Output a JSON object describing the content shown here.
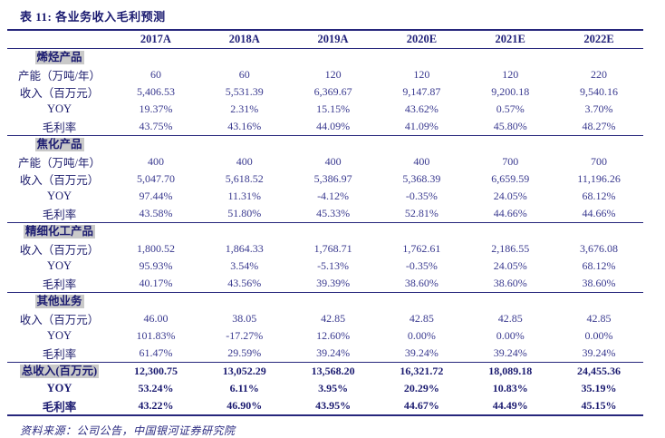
{
  "title": "表 11:  各业务收入毛利预测",
  "columns": [
    "",
    "2017A",
    "2018A",
    "2019A",
    "2020E",
    "2021E",
    "2022E"
  ],
  "sections": [
    {
      "name": "烯烃产品",
      "rows": [
        {
          "label": "产能（万吨/年）",
          "values": [
            "60",
            "60",
            "120",
            "120",
            "120",
            "220"
          ]
        },
        {
          "label": "收入（百万元）",
          "values": [
            "5,406.53",
            "5,531.39",
            "6,369.67",
            "9,147.87",
            "9,200.18",
            "9,540.16"
          ]
        },
        {
          "label": "YOY",
          "values": [
            "19.37%",
            "2.31%",
            "15.15%",
            "43.62%",
            "0.57%",
            "3.70%"
          ]
        },
        {
          "label": "毛利率",
          "values": [
            "43.75%",
            "43.16%",
            "44.09%",
            "41.09%",
            "45.80%",
            "48.27%"
          ]
        }
      ]
    },
    {
      "name": "焦化产品",
      "rows": [
        {
          "label": "产能（万吨/年）",
          "values": [
            "400",
            "400",
            "400",
            "400",
            "700",
            "700"
          ]
        },
        {
          "label": "收入（百万元）",
          "values": [
            "5,047.70",
            "5,618.52",
            "5,386.97",
            "5,368.39",
            "6,659.59",
            "11,196.26"
          ]
        },
        {
          "label": "YOY",
          "values": [
            "97.44%",
            "11.31%",
            "-4.12%",
            "-0.35%",
            "24.05%",
            "68.12%"
          ]
        },
        {
          "label": "毛利率",
          "values": [
            "43.58%",
            "51.80%",
            "45.33%",
            "52.81%",
            "44.66%",
            "44.66%"
          ]
        }
      ]
    },
    {
      "name": "精细化工产品",
      "rows": [
        {
          "label": "收入（百万元）",
          "values": [
            "1,800.52",
            "1,864.33",
            "1,768.71",
            "1,762.61",
            "2,186.55",
            "3,676.08"
          ]
        },
        {
          "label": "YOY",
          "values": [
            "95.93%",
            "3.54%",
            "-5.13%",
            "-0.35%",
            "24.05%",
            "68.12%"
          ]
        },
        {
          "label": "毛利率",
          "values": [
            "40.17%",
            "43.56%",
            "39.39%",
            "38.60%",
            "38.60%",
            "38.60%"
          ]
        }
      ]
    },
    {
      "name": "其他业务",
      "rows": [
        {
          "label": "收入（百万元）",
          "values": [
            "46.00",
            "38.05",
            "42.85",
            "42.85",
            "42.85",
            "42.85"
          ]
        },
        {
          "label": "YOY",
          "values": [
            "101.83%",
            "-17.27%",
            "12.60%",
            "0.00%",
            "0.00%",
            "0.00%"
          ]
        },
        {
          "label": "毛利率",
          "values": [
            "61.47%",
            "29.59%",
            "39.24%",
            "39.24%",
            "39.24%",
            "39.24%"
          ]
        }
      ]
    }
  ],
  "totals": {
    "rows": [
      {
        "label": "总收入(百万元)",
        "highlight": true,
        "values": [
          "12,300.75",
          "13,052.29",
          "13,568.20",
          "16,321.72",
          "18,089.18",
          "24,455.36"
        ]
      },
      {
        "label": "YOY",
        "highlight": false,
        "values": [
          "53.24%",
          "6.11%",
          "3.95%",
          "20.29%",
          "10.83%",
          "35.19%"
        ]
      },
      {
        "label": "毛利率",
        "highlight": false,
        "values": [
          "43.22%",
          "46.90%",
          "43.95%",
          "44.67%",
          "44.49%",
          "45.15%"
        ]
      }
    ]
  },
  "source": "资料来源：公司公告，中国银河证券研究院",
  "colors": {
    "text_navy": "#1a1a70",
    "number_blue": "#39398f",
    "rule_navy": "#26267c",
    "highlight_gray": "#c9c9c9",
    "background": "#ffffff"
  }
}
